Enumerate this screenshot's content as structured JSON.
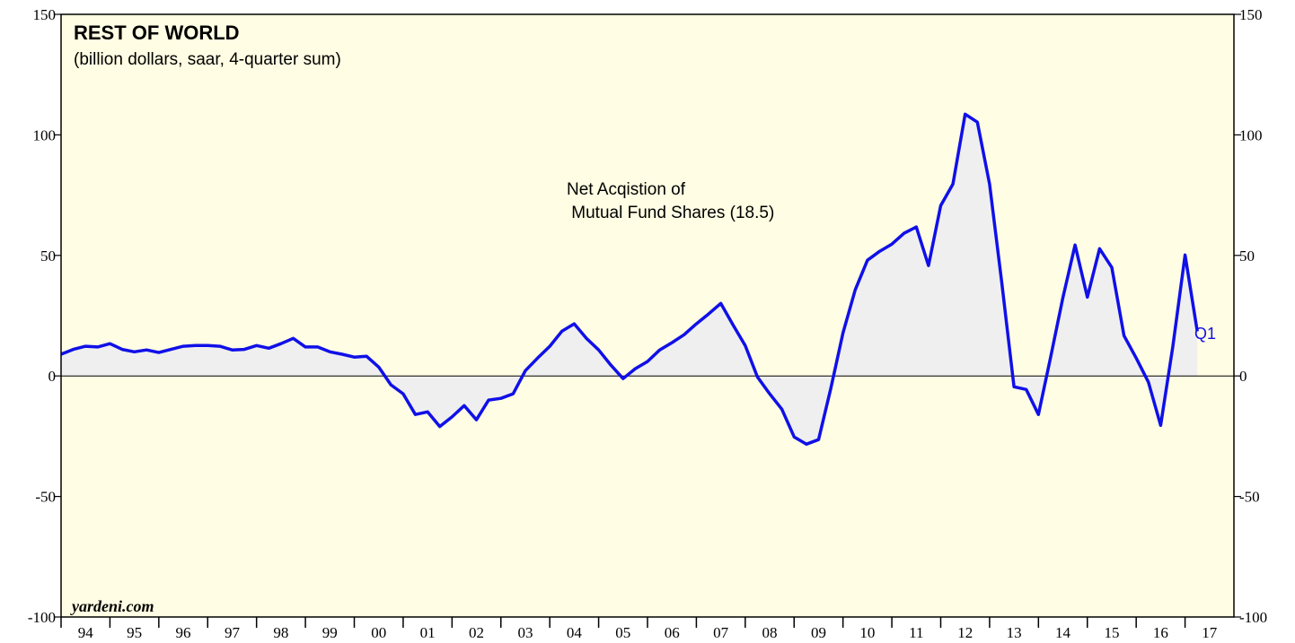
{
  "chart_data": {
    "type": "line",
    "title": "REST OF WORLD",
    "subtitle": "(billion dollars, saar, 4-quarter sum)",
    "annotation": [
      "Net Acqistion of",
      " Mutual Fund Shares (18.5)"
    ],
    "end_label": "Q1",
    "source": "yardeni.com",
    "xlim": [
      1994,
      2018
    ],
    "ylim": [
      -100,
      150
    ],
    "yticks": [
      -100,
      -50,
      0,
      50,
      100,
      150
    ],
    "xticks": [
      {
        "value": 1994,
        "label": "94"
      },
      {
        "value": 1995,
        "label": "95"
      },
      {
        "value": 1996,
        "label": "96"
      },
      {
        "value": 1997,
        "label": "97"
      },
      {
        "value": 1998,
        "label": "98"
      },
      {
        "value": 1999,
        "label": "99"
      },
      {
        "value": 2000,
        "label": "00"
      },
      {
        "value": 2001,
        "label": "01"
      },
      {
        "value": 2002,
        "label": "02"
      },
      {
        "value": 2003,
        "label": "03"
      },
      {
        "value": 2004,
        "label": "04"
      },
      {
        "value": 2005,
        "label": "05"
      },
      {
        "value": 2006,
        "label": "06"
      },
      {
        "value": 2007,
        "label": "07"
      },
      {
        "value": 2008,
        "label": "08"
      },
      {
        "value": 2009,
        "label": "09"
      },
      {
        "value": 2010,
        "label": "10"
      },
      {
        "value": 2011,
        "label": "11"
      },
      {
        "value": 2012,
        "label": "12"
      },
      {
        "value": 2013,
        "label": "13"
      },
      {
        "value": 2014,
        "label": "14"
      },
      {
        "value": 2015,
        "label": "15"
      },
      {
        "value": 2016,
        "label": "16"
      },
      {
        "value": 2017,
        "label": "17"
      }
    ],
    "x": [
      1994,
      1994.25,
      1994.5,
      1994.75,
      1995,
      1995.25,
      1995.5,
      1995.75,
      1996,
      1996.25,
      1996.5,
      1996.75,
      1997,
      1997.25,
      1997.5,
      1997.75,
      1998,
      1998.25,
      1998.5,
      1998.75,
      1999,
      1999.25,
      1999.5,
      1999.75,
      2000,
      2000.25,
      2000.5,
      2000.75,
      2001,
      2001.25,
      2001.5,
      2001.75,
      2002,
      2002.25,
      2002.5,
      2002.75,
      2003,
      2003.25,
      2003.5,
      2003.75,
      2004,
      2004.25,
      2004.5,
      2004.75,
      2005,
      2005.25,
      2005.5,
      2005.75,
      2006,
      2006.25,
      2006.5,
      2006.75,
      2007,
      2007.25,
      2007.5,
      2007.75,
      2008,
      2008.25,
      2008.5,
      2008.75,
      2009,
      2009.25,
      2009.5,
      2009.75,
      2010,
      2010.25,
      2010.5,
      2010.75,
      2011,
      2011.25,
      2011.5,
      2011.75,
      2012,
      2012.25,
      2012.5,
      2012.75,
      2013,
      2013.25,
      2013.5,
      2013.75,
      2014,
      2014.25,
      2014.5,
      2014.75,
      2015,
      2015.25,
      2015.5,
      2015.75,
      2016,
      2016.25,
      2016.5,
      2016.75,
      2017,
      2017.25
    ],
    "series": [
      {
        "name": "Net Acqistion of Mutual Fund Shares",
        "color": "#1010e8",
        "fill": "#efefef",
        "values": [
          9,
          11,
          12.3,
          12,
          13.4,
          11,
          10,
          10.8,
          9.7,
          11,
          12.3,
          12.6,
          12.6,
          12.3,
          10.8,
          11,
          12.6,
          11.5,
          13.4,
          15.6,
          12,
          12,
          10,
          9,
          7.8,
          8.2,
          3.7,
          -3.7,
          -7.4,
          -16,
          -14.9,
          -21,
          -17,
          -12.3,
          -18.2,
          -10,
          -9.3,
          -7.4,
          2.2,
          7.4,
          12.3,
          18.6,
          21.6,
          15.6,
          10.8,
          4.5,
          -1.1,
          3,
          6,
          10.8,
          13.8,
          17.1,
          21.6,
          25.7,
          30.1,
          21.2,
          12.6,
          -0.4,
          -7.4,
          -13.8,
          -25.3,
          -28.3,
          -26.4,
          -5.2,
          17.9,
          35.7,
          48,
          51.7,
          54.7,
          59.2,
          61.8,
          45.8,
          70.7,
          79.6,
          108.6,
          105.3,
          79.6,
          38.7,
          -4.5,
          -5.6,
          -16,
          7.8,
          32.4,
          54.3,
          32.7,
          52.8,
          45,
          16.7,
          7.4,
          -2.6,
          -20.5,
          12.3,
          50.2,
          18.5
        ]
      }
    ]
  }
}
